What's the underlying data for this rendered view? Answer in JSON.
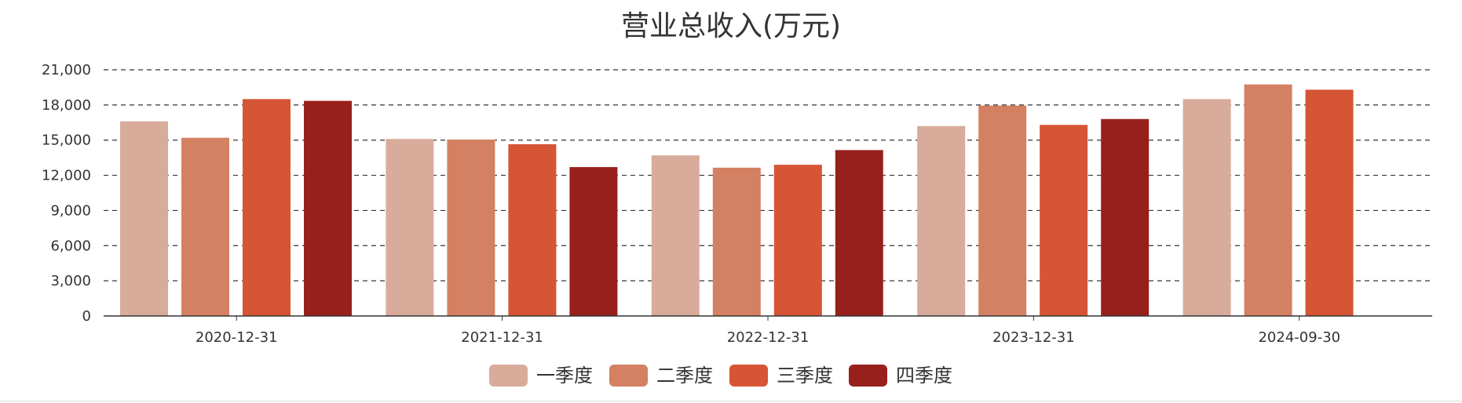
{
  "chart_data": {
    "type": "bar",
    "title": "营业总收入(万元)",
    "xlabel": "",
    "ylabel": "",
    "categories": [
      "2020-12-31",
      "2021-12-31",
      "2022-12-31",
      "2023-12-31",
      "2024-09-30"
    ],
    "series": [
      {
        "name": "一季度",
        "color": "#d9ab9b",
        "values": [
          16600,
          15100,
          13700,
          16200,
          18500
        ]
      },
      {
        "name": "二季度",
        "color": "#d48062",
        "values": [
          15200,
          15050,
          12650,
          17950,
          19750
        ]
      },
      {
        "name": "三季度",
        "color": "#d55535",
        "values": [
          18500,
          14650,
          12900,
          16300,
          19300
        ]
      },
      {
        "name": "四季度",
        "color": "#97201d",
        "values": [
          18350,
          12700,
          14150,
          16800,
          null
        ]
      }
    ],
    "ylim": [
      0,
      21000
    ],
    "yticks": [
      0,
      3000,
      6000,
      9000,
      12000,
      15000,
      18000,
      21000
    ],
    "ytick_labels": [
      "0",
      "3,000",
      "6,000",
      "9,000",
      "12,000",
      "15,000",
      "18,000",
      "21,000"
    ],
    "grid": "horizontal-dashed",
    "legend_position": "bottom-center"
  }
}
